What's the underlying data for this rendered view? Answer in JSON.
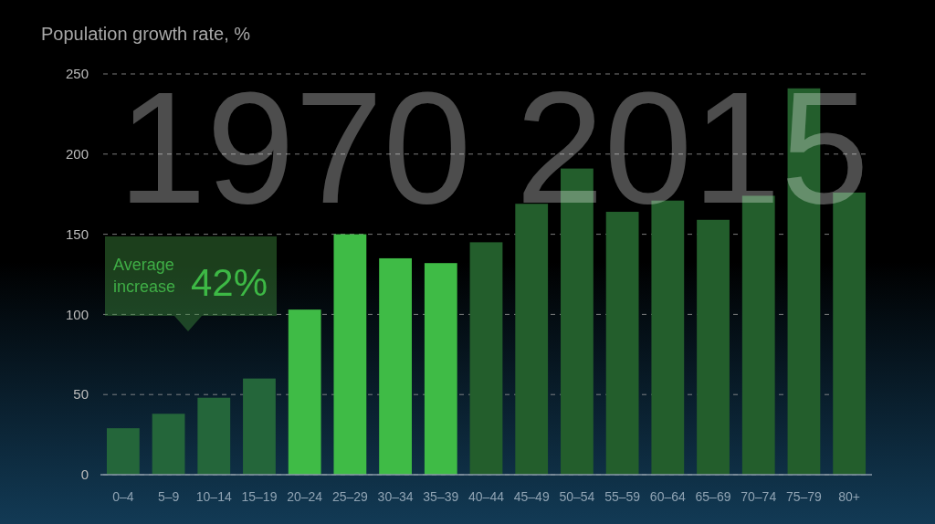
{
  "chart_data": {
    "type": "bar",
    "ylabel": "Population growth rate, %",
    "categories": [
      "0–4",
      "5–9",
      "10–14",
      "15–19",
      "20–24",
      "25–29",
      "30–34",
      "35–39",
      "40–44",
      "45–49",
      "50–54",
      "55–59",
      "60–64",
      "65–69",
      "70–74",
      "75–79",
      "80+"
    ],
    "values": [
      29,
      38,
      48,
      60,
      103,
      150,
      135,
      132,
      145,
      169,
      191,
      164,
      171,
      159,
      174,
      241,
      176
    ],
    "colors": [
      "#24663a",
      "#24663a",
      "#24663a",
      "#24663a",
      "#3fbb46",
      "#3fbb46",
      "#3fbb46",
      "#3fbb46",
      "#235e2c",
      "#235e2c",
      "#235e2c",
      "#235e2c",
      "#235e2c",
      "#235e2c",
      "#235e2c",
      "#235e2c",
      "#235e2c"
    ],
    "ylim": [
      0,
      250
    ],
    "yticks": [
      0,
      50,
      100,
      150,
      200,
      250
    ],
    "grid": "y",
    "annotations": [
      "1970 2015",
      "Average increase",
      "42%"
    ]
  }
}
